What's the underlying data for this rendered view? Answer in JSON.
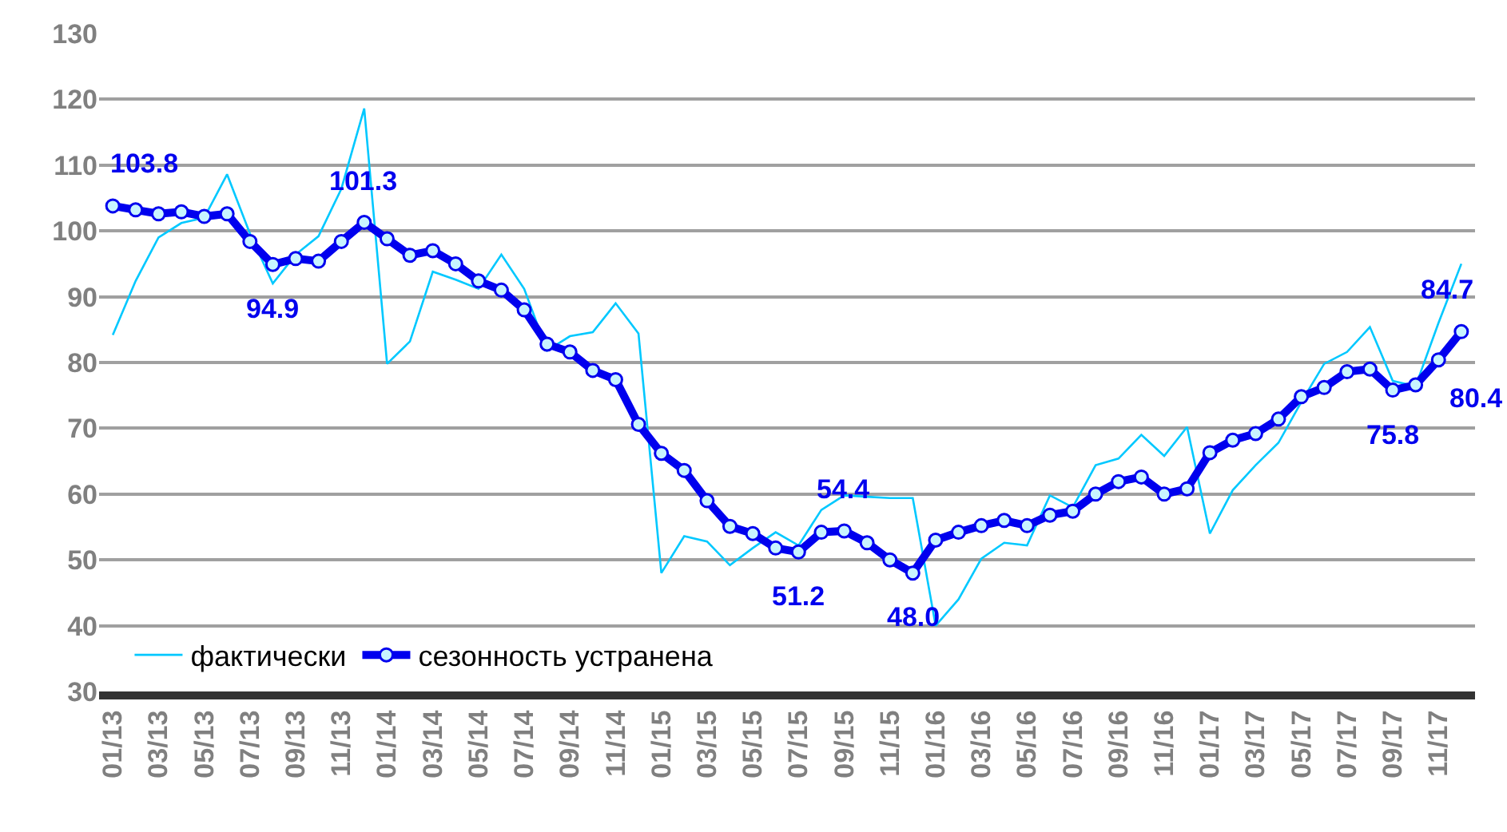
{
  "chart_data": {
    "type": "line",
    "categories": [
      "01/13",
      null,
      "03/13",
      null,
      "05/13",
      null,
      "07/13",
      null,
      "09/13",
      null,
      "11/13",
      null,
      "01/14",
      null,
      "03/14",
      null,
      "05/14",
      null,
      "07/14",
      null,
      "09/14",
      null,
      "11/14",
      null,
      "01/15",
      null,
      "03/15",
      null,
      "05/15",
      null,
      "07/15",
      null,
      "09/15",
      null,
      "11/15",
      null,
      "01/16",
      null,
      "03/16",
      null,
      "05/16",
      null,
      "07/16",
      null,
      "09/16",
      null,
      "11/16",
      null,
      "01/17",
      null,
      "03/17",
      null,
      "05/17",
      null,
      "07/17",
      null,
      "09/17",
      null,
      "11/17",
      null
    ],
    "series": [
      {
        "name": "фактически",
        "color": "#00c8ff",
        "marker": "none",
        "values": [
          84.2,
          92.4,
          99.0,
          101.2,
          102.0,
          108.6,
          99.6,
          92.0,
          96.4,
          99.2,
          106.4,
          118.6,
          79.8,
          83.2,
          93.8,
          92.6,
          91.2,
          96.4,
          91.2,
          81.8,
          84.0,
          84.6,
          89.0,
          84.4,
          48.0,
          53.6,
          52.8,
          49.2,
          51.8,
          54.2,
          52.2,
          57.6,
          59.8,
          59.6,
          59.4,
          59.4,
          40.0,
          44.0,
          50.2,
          52.6,
          52.2,
          59.8,
          58.0,
          64.4,
          65.4,
          69.0,
          65.8,
          70.2,
          54.0,
          60.6,
          64.4,
          67.8,
          74.0,
          79.8,
          81.6,
          85.4,
          77.2,
          76.4,
          86.0,
          95.0
        ]
      },
      {
        "name": "сезонность устранена",
        "color": "#0000ee",
        "marker": "circle",
        "values": [
          103.8,
          103.2,
          102.6,
          102.9,
          102.2,
          102.6,
          98.4,
          94.9,
          95.8,
          95.4,
          98.4,
          101.3,
          98.8,
          96.3,
          97.0,
          95.0,
          92.4,
          91.0,
          88.0,
          82.8,
          81.6,
          78.8,
          77.4,
          70.6,
          66.2,
          63.6,
          59.0,
          55.1,
          54.0,
          51.8,
          51.2,
          54.2,
          54.4,
          52.6,
          50.0,
          48.0,
          53.0,
          54.2,
          55.2,
          56.0,
          55.2,
          56.8,
          57.4,
          60.0,
          61.9,
          62.6,
          60.0,
          60.8,
          66.3,
          68.2,
          69.2,
          71.4,
          74.8,
          76.2,
          78.6,
          79.0,
          75.8,
          76.6,
          80.4,
          84.7
        ],
        "value_labels": [
          "103.8",
          null,
          null,
          null,
          null,
          null,
          null,
          "94.9",
          null,
          null,
          null,
          "101.3",
          null,
          null,
          null,
          null,
          null,
          null,
          null,
          null,
          null,
          null,
          null,
          null,
          null,
          null,
          null,
          null,
          null,
          null,
          "51.2",
          null,
          "54.4",
          null,
          null,
          "48.0",
          null,
          null,
          null,
          null,
          null,
          null,
          null,
          null,
          null,
          null,
          null,
          null,
          null,
          null,
          null,
          null,
          null,
          null,
          null,
          null,
          "75.8",
          null,
          "80.4",
          "84.7"
        ]
      }
    ],
    "ylim": [
      30,
      130
    ],
    "yticks": [
      30,
      40,
      50,
      60,
      70,
      80,
      90,
      100,
      110,
      120,
      130
    ],
    "grid": "y",
    "legend": "bottom left"
  }
}
